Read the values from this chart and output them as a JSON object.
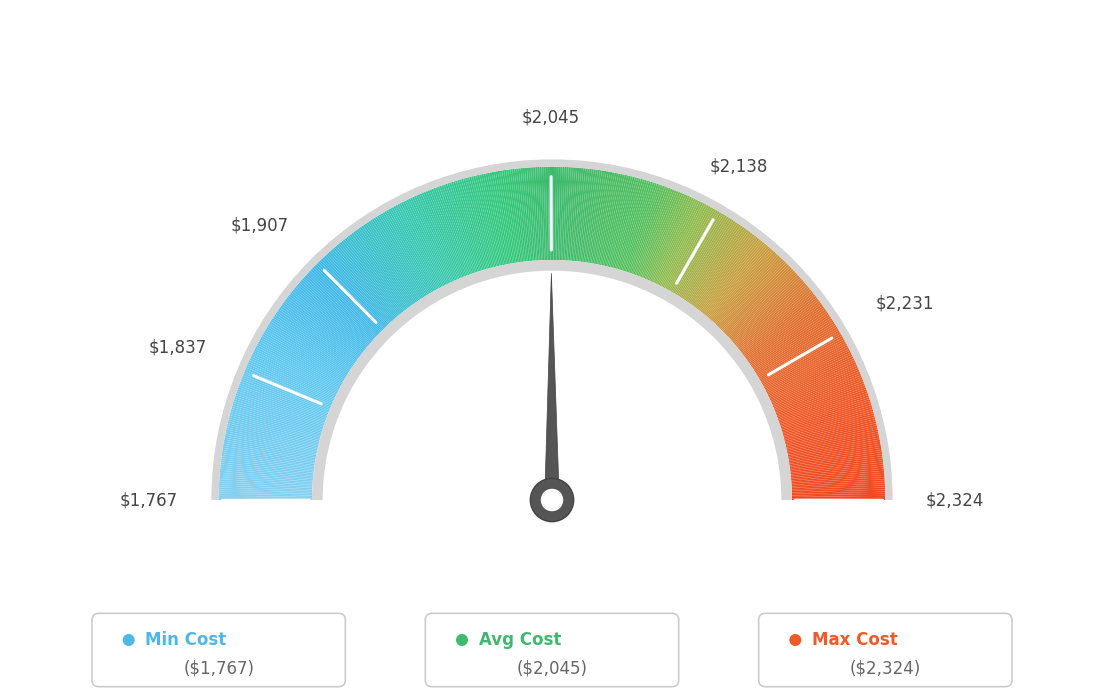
{
  "min_val": 1767,
  "max_val": 2324,
  "avg_val": 2045,
  "needle_value": 2045,
  "bg_color": "#ffffff",
  "tick_labels": [
    "$1,767",
    "$1,837",
    "$1,907",
    "$2,045",
    "$2,138",
    "$2,231",
    "$2,324"
  ],
  "tick_values": [
    1767,
    1837,
    1907,
    2045,
    2138,
    2231,
    2324
  ],
  "color_stops": [
    [
      0.0,
      "#85d0f0"
    ],
    [
      0.15,
      "#60c8f0"
    ],
    [
      0.25,
      "#40b8e8"
    ],
    [
      0.35,
      "#38c8b0"
    ],
    [
      0.45,
      "#35c87a"
    ],
    [
      0.5,
      "#3dba6e"
    ],
    [
      0.6,
      "#55c060"
    ],
    [
      0.65,
      "#90bc50"
    ],
    [
      0.72,
      "#c8a040"
    ],
    [
      0.8,
      "#e07030"
    ],
    [
      0.9,
      "#f05828"
    ],
    [
      1.0,
      "#f04820"
    ]
  ],
  "legend": [
    {
      "label": "Min Cost",
      "value": "($1,767)",
      "color": "#4db8e8"
    },
    {
      "label": "Avg Cost",
      "value": "($2,045)",
      "color": "#3dba6e"
    },
    {
      "label": "Max Cost",
      "value": "($2,324)",
      "color": "#f05a28"
    }
  ]
}
